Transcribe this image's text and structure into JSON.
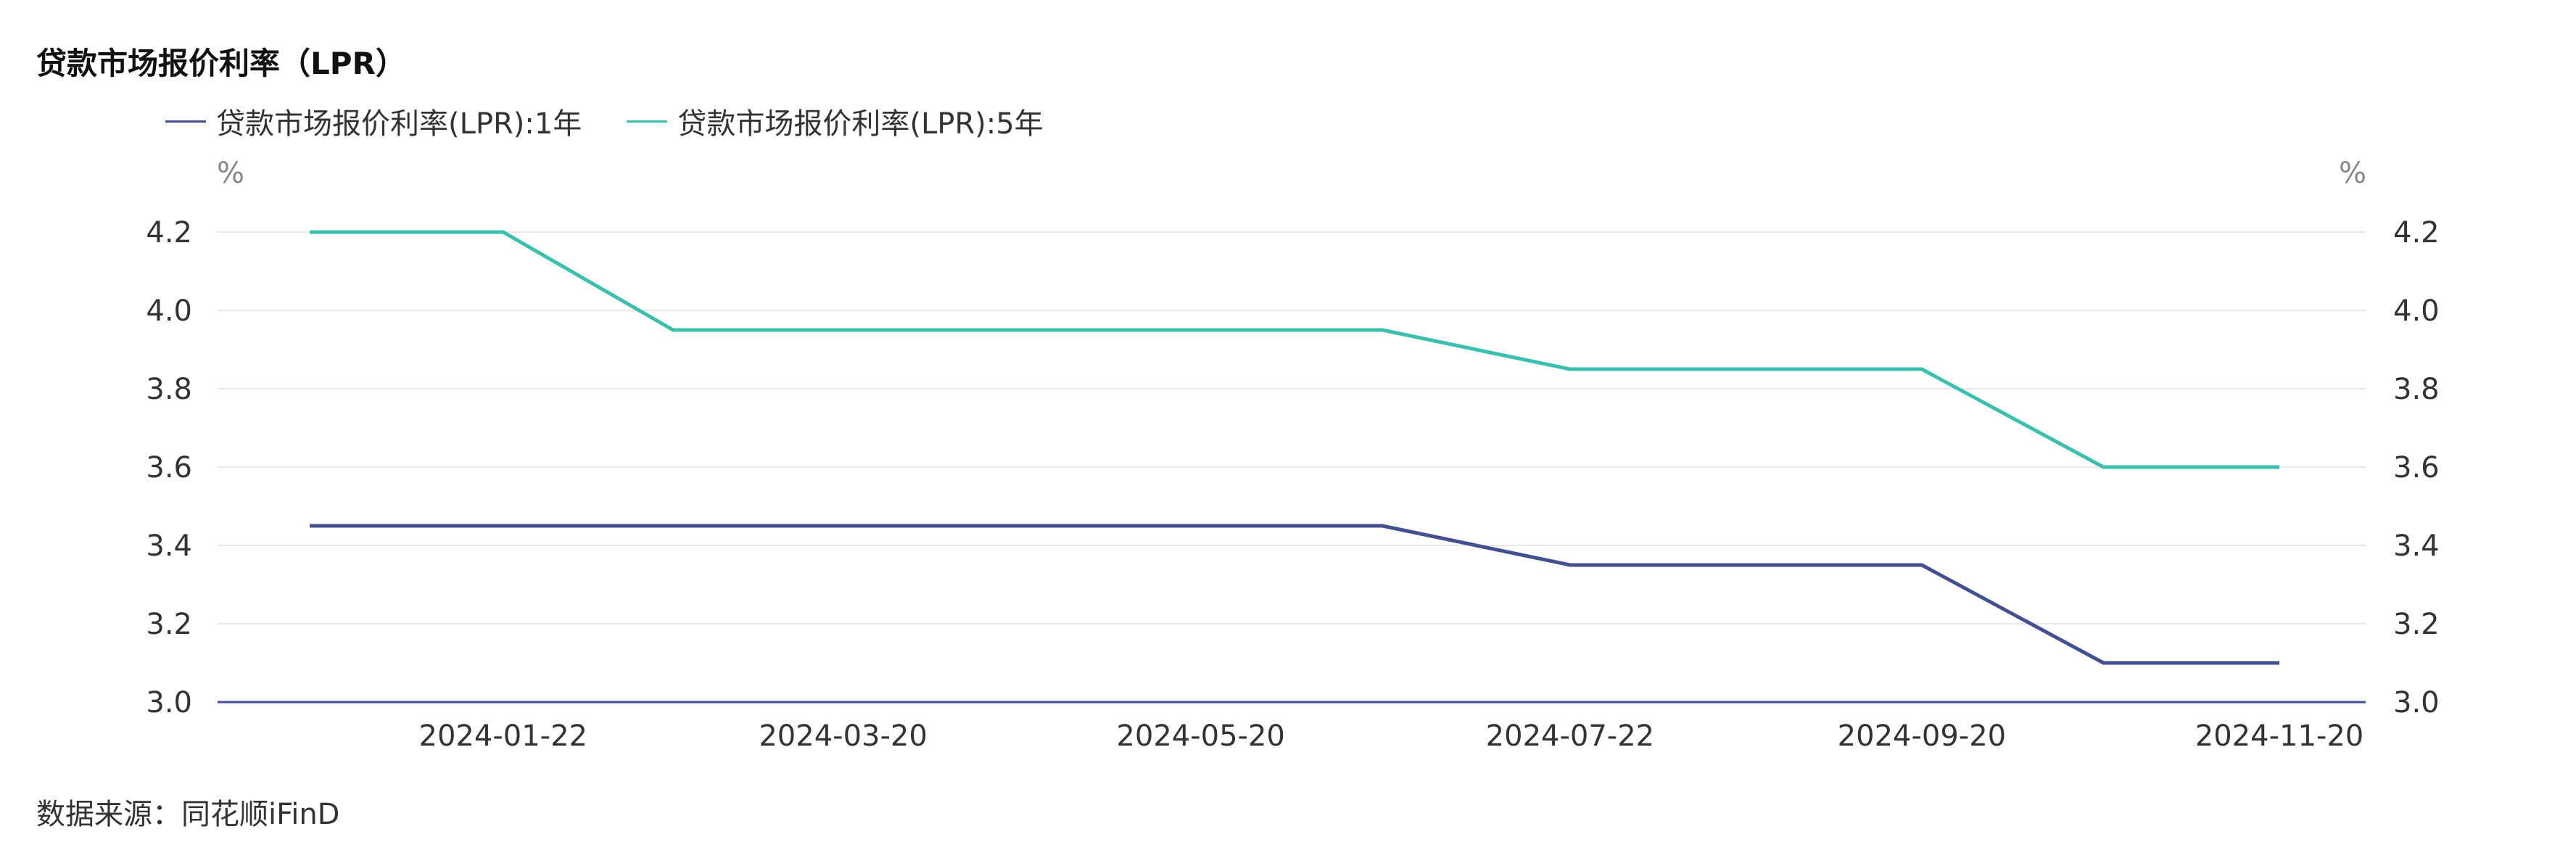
{
  "title": "贷款市场报价利率（LPR）",
  "source": "数据来源：同花顺iFinD",
  "colors": {
    "series_1y": "#44508f",
    "series_5y": "#3dbfae",
    "grid": "#e6e6e6",
    "axis": "#44508f"
  },
  "chart_data": {
    "type": "line",
    "title": "贷款市场报价利率（LPR）",
    "x": [
      "2023-12-20",
      "2024-01-22",
      "2024-02-20",
      "2024-03-20",
      "2024-04-22",
      "2024-05-20",
      "2024-06-20",
      "2024-07-22",
      "2024-08-20",
      "2024-09-20",
      "2024-10-21",
      "2024-11-20"
    ],
    "x_tick_labels": [
      "2024-01-22",
      "2024-03-20",
      "2024-05-20",
      "2024-07-22",
      "2024-09-20",
      "2024-11-20"
    ],
    "series": [
      {
        "name": "贷款市场报价利率(LPR):1年",
        "values": [
          3.45,
          3.45,
          3.45,
          3.45,
          3.45,
          3.45,
          3.45,
          3.35,
          3.35,
          3.35,
          3.1,
          3.1
        ]
      },
      {
        "name": "贷款市场报价利率(LPR):5年",
        "values": [
          4.2,
          4.2,
          3.95,
          3.95,
          3.95,
          3.95,
          3.95,
          3.85,
          3.85,
          3.85,
          3.6,
          3.6
        ]
      }
    ],
    "ylim": [
      3.0,
      4.2
    ],
    "y_ticks": [
      "3.0",
      "3.2",
      "3.4",
      "3.6",
      "3.8",
      "4.0",
      "4.2"
    ],
    "y_unit_left": "%",
    "y_unit_right": "%",
    "grid": true,
    "legend_position": "top-left"
  }
}
